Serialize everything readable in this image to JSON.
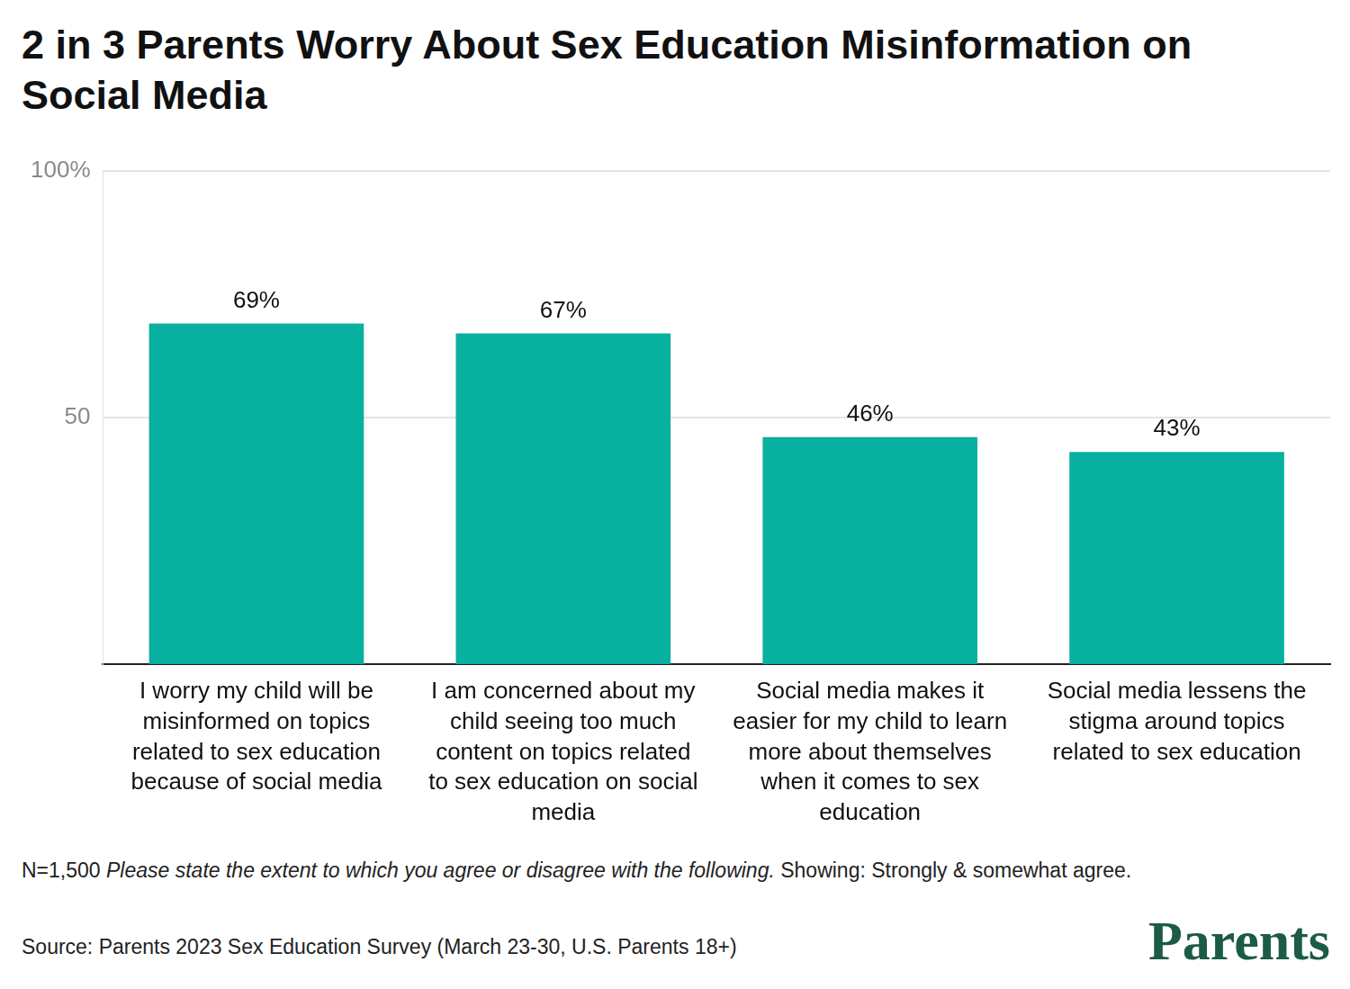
{
  "chart_data": {
    "type": "bar",
    "title": "2 in 3 Parents Worry About Sex Education Misinformation on Social Media",
    "categories": [
      "I worry my child will be misinformed on topics related to sex education because of social media",
      "I am concerned about my child seeing too much content on topics related to sex education on social media",
      "Social media makes it easier for my child to learn more about themselves when it comes to sex education",
      "Social media lessens the stigma around topics related to sex education"
    ],
    "values": [
      69,
      67,
      46,
      43
    ],
    "value_labels": [
      "69%",
      "67%",
      "46%",
      "43%"
    ],
    "data_labels": true,
    "color": "#08b09f",
    "ylim": [
      0,
      100
    ],
    "yticks": [
      50,
      {
        "value": 100,
        "label": "100%"
      }
    ],
    "grid": true,
    "note": {
      "sample": "N=1,500",
      "question": "Please state the extent to which you agree or disagree with the following.",
      "showing": "Showing: Strongly & somewhat agree."
    },
    "source": "Source: Parents 2023 Sex Education Survey (March 23-30, U.S. Parents 18+)",
    "brand": "Parents"
  }
}
